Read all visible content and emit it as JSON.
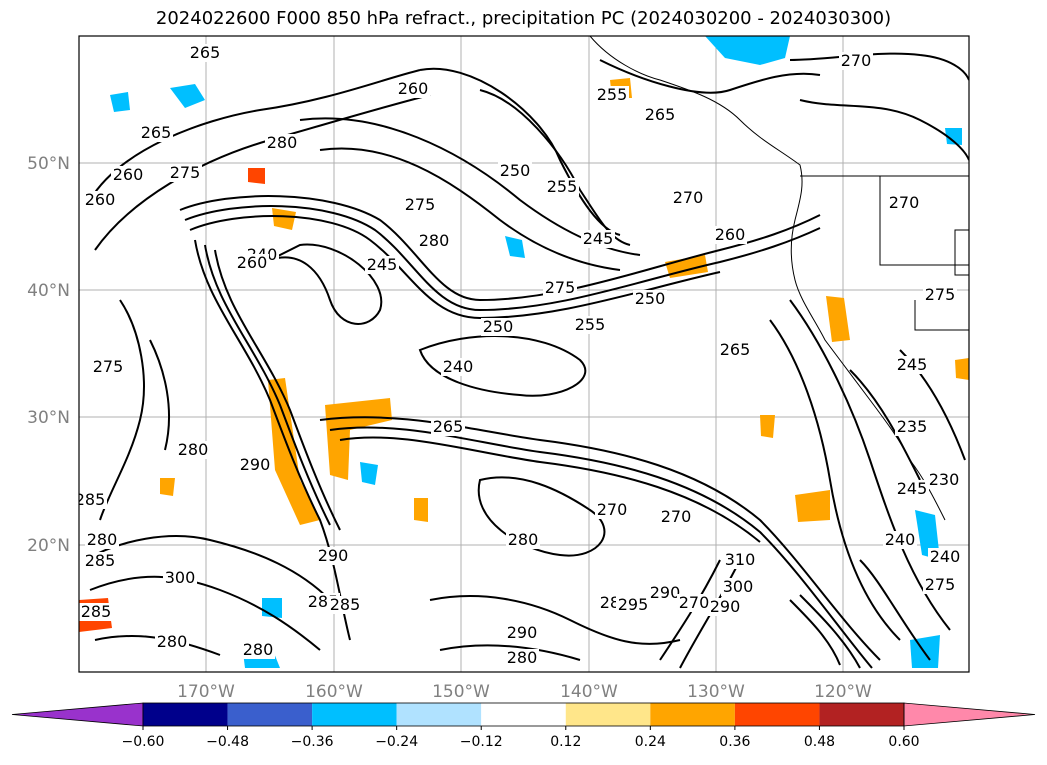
{
  "title": "2024022600 F000 850 hPa refract., precipitation PC (2024030200 - 2024030300)",
  "latitude_labels": [
    "50°N",
    "40°N",
    "30°N",
    "20°N"
  ],
  "longitude_labels": [
    "170°W",
    "160°W",
    "150°W",
    "140°W",
    "130°W",
    "120°W"
  ],
  "contour_labels": [
    "265",
    "260",
    "265",
    "280",
    "275",
    "260",
    "260",
    "240",
    "245",
    "280",
    "275",
    "250",
    "255",
    "245",
    "260",
    "255",
    "265",
    "270",
    "270",
    "260",
    "270",
    "275",
    "250",
    "255",
    "250",
    "240",
    "265",
    "265",
    "245",
    "275",
    "270",
    "285",
    "275",
    "290",
    "280",
    "285",
    "285",
    "270",
    "280",
    "300",
    "290",
    "285",
    "295",
    "290",
    "280",
    "285",
    "280",
    "285",
    "280",
    "290",
    "310",
    "290",
    "300",
    "280",
    "270",
    "240",
    "235",
    "230",
    "240",
    "245",
    "275"
  ],
  "colorbar": {
    "ticks": [
      "−0.60",
      "−0.48",
      "−0.36",
      "−0.24",
      "−0.12",
      "0.12",
      "0.24",
      "0.36",
      "0.48",
      "0.60"
    ],
    "colors": [
      "#9932cc",
      "#00008b",
      "#3a5fcd",
      "#00bfff",
      "#b0e2ff",
      "#ffffff",
      "#ffe68a",
      "#ffa500",
      "#ff4500",
      "#b22222",
      "#ff88aa"
    ]
  },
  "colors": {
    "positive_fill": "#ffa500",
    "positive_light": "#ffe68a",
    "negative_fill": "#00bfff",
    "negative_light": "#b0e2ff",
    "strong_positive": "#ff4500"
  }
}
